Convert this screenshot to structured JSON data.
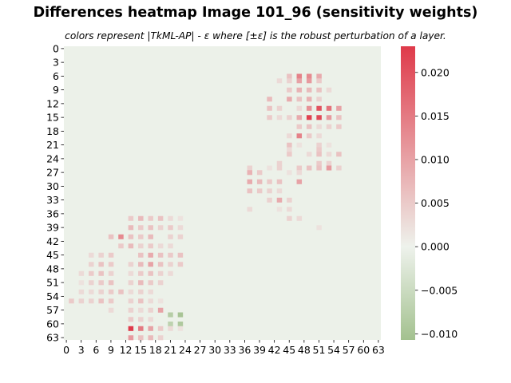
{
  "chart_data": {
    "type": "heatmap",
    "title": "Differences heatmap Image 101_96 (sensitivity weights)",
    "subtitle": "colors represent |TkML-AP| - ε where [±ε] is the robust perturbation of a layer.",
    "rows": 64,
    "cols": 64,
    "x_tick_labels": [
      "0",
      "3",
      "6",
      "9",
      "12",
      "15",
      "18",
      "21",
      "24",
      "27",
      "30",
      "33",
      "36",
      "39",
      "42",
      "45",
      "48",
      "51",
      "54",
      "57",
      "60",
      "63"
    ],
    "y_tick_labels": [
      "0",
      "3",
      "6",
      "9",
      "12",
      "15",
      "18",
      "21",
      "24",
      "27",
      "30",
      "33",
      "36",
      "39",
      "42",
      "45",
      "48",
      "51",
      "54",
      "57",
      "60",
      "63"
    ],
    "colorbar": {
      "min": -0.0107,
      "max": 0.023,
      "tick_values": [
        0.02,
        0.015,
        0.01,
        0.005,
        0.0,
        -0.005,
        -0.01
      ],
      "tick_labels": [
        "0.020",
        "0.015",
        "0.010",
        "0.005",
        "0.000",
        "−0.005",
        "−0.010"
      ],
      "colors": {
        "negative": "#a3c18f",
        "zero": "#eef2ec",
        "positive": "#df3a4a"
      }
    },
    "background_value": -0.0003,
    "cells": [
      [
        6,
        47,
        0.014
      ],
      [
        6,
        49,
        0.013
      ],
      [
        6,
        51,
        0.009
      ],
      [
        6,
        45,
        0.006
      ],
      [
        7,
        47,
        0.01
      ],
      [
        7,
        49,
        0.011
      ],
      [
        7,
        51,
        0.005
      ],
      [
        7,
        45,
        0.004
      ],
      [
        7,
        43,
        0.003
      ],
      [
        9,
        45,
        0.005
      ],
      [
        9,
        47,
        0.008
      ],
      [
        9,
        49,
        0.007
      ],
      [
        9,
        51,
        0.006
      ],
      [
        9,
        53,
        0.003
      ],
      [
        11,
        41,
        0.007
      ],
      [
        11,
        45,
        0.009
      ],
      [
        11,
        47,
        0.006
      ],
      [
        11,
        49,
        0.008
      ],
      [
        11,
        51,
        0.004
      ],
      [
        13,
        41,
        0.006
      ],
      [
        13,
        43,
        0.004
      ],
      [
        13,
        47,
        0.003
      ],
      [
        13,
        49,
        0.012
      ],
      [
        13,
        51,
        0.02
      ],
      [
        13,
        53,
        0.016
      ],
      [
        13,
        55,
        0.01
      ],
      [
        15,
        41,
        0.005
      ],
      [
        15,
        43,
        0.003
      ],
      [
        15,
        45,
        0.004
      ],
      [
        15,
        47,
        0.009
      ],
      [
        15,
        49,
        0.022
      ],
      [
        15,
        51,
        0.021
      ],
      [
        15,
        53,
        0.011
      ],
      [
        15,
        55,
        0.006
      ],
      [
        17,
        47,
        0.005
      ],
      [
        17,
        49,
        0.006
      ],
      [
        17,
        51,
        0.003
      ],
      [
        17,
        53,
        0.004
      ],
      [
        17,
        55,
        0.005
      ],
      [
        19,
        45,
        0.003
      ],
      [
        19,
        47,
        0.014
      ],
      [
        19,
        49,
        0.005
      ],
      [
        19,
        51,
        0.003
      ],
      [
        21,
        45,
        0.006
      ],
      [
        21,
        47,
        0.002
      ],
      [
        21,
        51,
        0.004
      ],
      [
        21,
        53,
        0.002
      ],
      [
        22,
        45,
        0.003
      ],
      [
        22,
        51,
        0.005
      ],
      [
        23,
        45,
        0.005
      ],
      [
        23,
        49,
        0.003
      ],
      [
        23,
        51,
        0.006
      ],
      [
        23,
        53,
        0.003
      ],
      [
        23,
        55,
        0.006
      ],
      [
        25,
        43,
        0.004
      ],
      [
        25,
        51,
        0.005
      ],
      [
        25,
        53,
        0.004
      ],
      [
        26,
        37,
        0.004
      ],
      [
        26,
        41,
        0.002
      ],
      [
        26,
        43,
        0.004
      ],
      [
        26,
        47,
        0.005
      ],
      [
        26,
        49,
        0.006
      ],
      [
        26,
        51,
        0.006
      ],
      [
        26,
        53,
        0.011
      ],
      [
        26,
        55,
        0.004
      ],
      [
        27,
        37,
        0.008
      ],
      [
        27,
        39,
        0.005
      ],
      [
        27,
        45,
        0.002
      ],
      [
        27,
        47,
        0.003
      ],
      [
        29,
        37,
        0.009
      ],
      [
        29,
        39,
        0.007
      ],
      [
        29,
        41,
        0.005
      ],
      [
        29,
        43,
        0.006
      ],
      [
        29,
        47,
        0.01
      ],
      [
        31,
        37,
        0.006
      ],
      [
        31,
        39,
        0.005
      ],
      [
        31,
        41,
        0.004
      ],
      [
        31,
        43,
        0.003
      ],
      [
        33,
        41,
        0.004
      ],
      [
        33,
        43,
        0.009
      ],
      [
        33,
        45,
        0.004
      ],
      [
        35,
        37,
        0.003
      ],
      [
        35,
        43,
        0.002
      ],
      [
        35,
        45,
        0.003
      ],
      [
        37,
        13,
        0.005
      ],
      [
        37,
        15,
        0.007
      ],
      [
        37,
        17,
        0.005
      ],
      [
        37,
        19,
        0.006
      ],
      [
        37,
        21,
        0.003
      ],
      [
        37,
        23,
        0.002
      ],
      [
        37,
        45,
        0.004
      ],
      [
        37,
        47,
        0.003
      ],
      [
        39,
        13,
        0.007
      ],
      [
        39,
        15,
        0.005
      ],
      [
        39,
        17,
        0.006
      ],
      [
        39,
        19,
        0.004
      ],
      [
        39,
        21,
        0.005
      ],
      [
        39,
        23,
        0.003
      ],
      [
        39,
        51,
        0.002
      ],
      [
        41,
        9,
        0.006
      ],
      [
        41,
        11,
        0.013
      ],
      [
        41,
        13,
        0.006
      ],
      [
        41,
        15,
        0.005
      ],
      [
        41,
        17,
        0.007
      ],
      [
        41,
        21,
        0.004
      ],
      [
        41,
        23,
        0.004
      ],
      [
        43,
        11,
        0.005
      ],
      [
        43,
        13,
        0.007
      ],
      [
        43,
        15,
        0.004
      ],
      [
        43,
        17,
        0.005
      ],
      [
        43,
        19,
        0.003
      ],
      [
        43,
        21,
        0.003
      ],
      [
        45,
        5,
        0.003
      ],
      [
        45,
        7,
        0.004
      ],
      [
        45,
        9,
        0.005
      ],
      [
        45,
        15,
        0.006
      ],
      [
        45,
        17,
        0.009
      ],
      [
        45,
        19,
        0.006
      ],
      [
        45,
        21,
        0.005
      ],
      [
        45,
        23,
        0.006
      ],
      [
        47,
        5,
        0.004
      ],
      [
        47,
        7,
        0.006
      ],
      [
        47,
        9,
        0.005
      ],
      [
        47,
        13,
        0.004
      ],
      [
        47,
        15,
        0.007
      ],
      [
        47,
        17,
        0.01
      ],
      [
        47,
        19,
        0.006
      ],
      [
        47,
        21,
        0.004
      ],
      [
        47,
        23,
        0.005
      ],
      [
        49,
        3,
        0.003
      ],
      [
        49,
        5,
        0.005
      ],
      [
        49,
        7,
        0.006
      ],
      [
        49,
        9,
        0.004
      ],
      [
        49,
        13,
        0.003
      ],
      [
        49,
        15,
        0.005
      ],
      [
        49,
        17,
        0.006
      ],
      [
        49,
        19,
        0.004
      ],
      [
        49,
        21,
        0.003
      ],
      [
        51,
        3,
        0.002
      ],
      [
        51,
        5,
        0.004
      ],
      [
        51,
        7,
        0.005
      ],
      [
        51,
        9,
        0.006
      ],
      [
        51,
        13,
        0.004
      ],
      [
        51,
        15,
        0.007
      ],
      [
        51,
        17,
        0.005
      ],
      [
        51,
        19,
        0.004
      ],
      [
        53,
        3,
        0.003
      ],
      [
        53,
        5,
        0.003
      ],
      [
        53,
        7,
        0.004
      ],
      [
        53,
        9,
        0.005
      ],
      [
        53,
        11,
        0.006
      ],
      [
        53,
        13,
        0.003
      ],
      [
        53,
        15,
        0.004
      ],
      [
        53,
        17,
        0.003
      ],
      [
        55,
        1,
        0.005
      ],
      [
        55,
        3,
        0.004
      ],
      [
        55,
        5,
        0.004
      ],
      [
        55,
        7,
        0.006
      ],
      [
        55,
        9,
        0.005
      ],
      [
        55,
        13,
        0.004
      ],
      [
        55,
        15,
        0.006
      ],
      [
        55,
        17,
        0.003
      ],
      [
        55,
        19,
        0.002
      ],
      [
        57,
        9,
        0.003
      ],
      [
        57,
        13,
        0.004
      ],
      [
        57,
        15,
        0.003
      ],
      [
        57,
        17,
        0.004
      ],
      [
        57,
        19,
        0.01
      ],
      [
        58,
        21,
        -0.008
      ],
      [
        58,
        23,
        -0.01
      ],
      [
        59,
        13,
        0.005
      ],
      [
        59,
        15,
        0.004
      ],
      [
        59,
        17,
        0.003
      ],
      [
        60,
        21,
        -0.007
      ],
      [
        60,
        23,
        -0.009
      ],
      [
        61,
        13,
        0.023
      ],
      [
        61,
        15,
        0.015
      ],
      [
        61,
        17,
        0.01
      ],
      [
        61,
        19,
        0.005
      ],
      [
        61,
        21,
        0.003
      ],
      [
        61,
        23,
        0.002
      ],
      [
        63,
        13,
        0.011
      ],
      [
        63,
        15,
        0.006
      ],
      [
        63,
        17,
        0.007
      ],
      [
        63,
        19,
        0.004
      ]
    ]
  }
}
